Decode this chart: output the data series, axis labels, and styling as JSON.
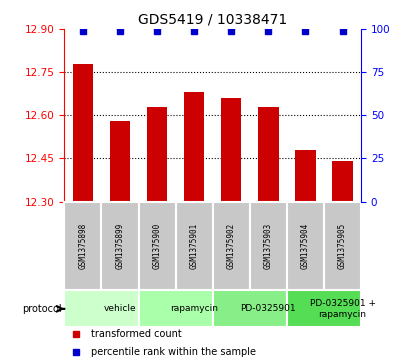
{
  "title": "GDS5419 / 10338471",
  "samples": [
    "GSM1375898",
    "GSM1375899",
    "GSM1375900",
    "GSM1375901",
    "GSM1375902",
    "GSM1375903",
    "GSM1375904",
    "GSM1375905"
  ],
  "bar_values": [
    12.78,
    12.58,
    12.63,
    12.68,
    12.66,
    12.63,
    12.48,
    12.44
  ],
  "percentile_values": [
    100,
    100,
    100,
    100,
    100,
    100,
    100,
    100
  ],
  "ylim": [
    12.3,
    12.9
  ],
  "yticks": [
    12.3,
    12.45,
    12.6,
    12.75,
    12.9
  ],
  "right_ylim": [
    0,
    100
  ],
  "right_yticks": [
    0,
    25,
    50,
    75,
    100
  ],
  "bar_color": "#cc0000",
  "percentile_color": "#0000cc",
  "protocols": [
    {
      "label": "vehicle",
      "start": 0,
      "end": 2
    },
    {
      "label": "rapamycin",
      "start": 2,
      "end": 4
    },
    {
      "label": "PD-0325901",
      "start": 4,
      "end": 6
    },
    {
      "label": "PD-0325901 +\nrapamycin",
      "start": 6,
      "end": 8
    }
  ],
  "proto_colors": [
    "#ccffcc",
    "#aaffaa",
    "#88ee88",
    "#55dd55"
  ],
  "sample_bg_color": "#c8c8c8",
  "legend_items": [
    {
      "label": "transformed count",
      "color": "#cc0000"
    },
    {
      "label": "percentile rank within the sample",
      "color": "#0000cc"
    }
  ]
}
